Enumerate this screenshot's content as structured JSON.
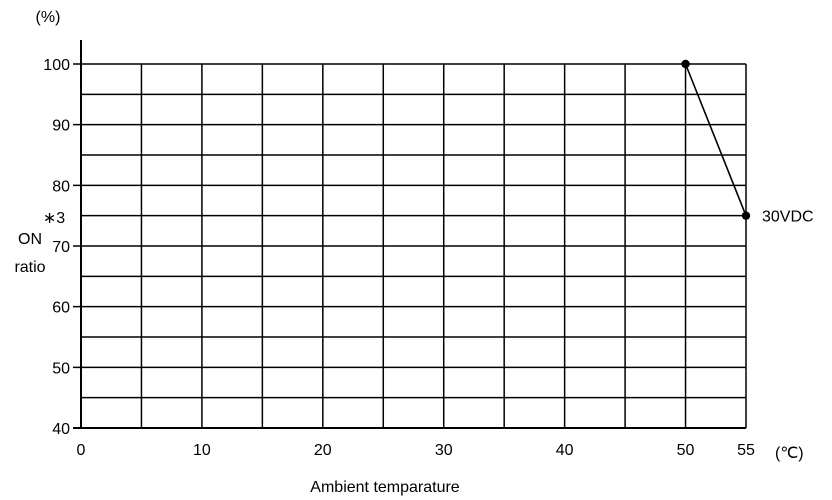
{
  "chart_data": {
    "type": "line",
    "title": "",
    "xlabel": "Ambient temparature",
    "x_unit": "(℃)",
    "ylabel_lines": [
      "∗3",
      "ON",
      "ratio"
    ],
    "y_unit": "(%)",
    "xlim": [
      0,
      55
    ],
    "ylim": [
      40,
      100
    ],
    "x_ticks": [
      0,
      10,
      20,
      30,
      40,
      50,
      55
    ],
    "y_ticks": [
      40,
      50,
      60,
      70,
      80,
      90,
      100
    ],
    "grid": true,
    "series": [
      {
        "name": "30VDC",
        "x": [
          50,
          55
        ],
        "y": [
          100,
          75
        ]
      }
    ]
  }
}
